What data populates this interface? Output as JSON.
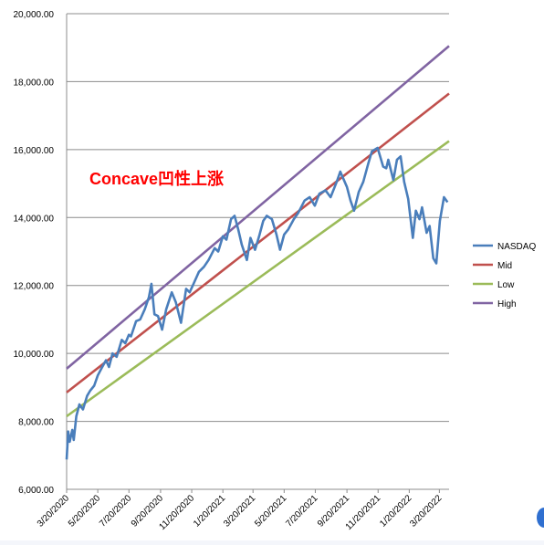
{
  "chart_data": {
    "type": "line",
    "annotation": "Concave凹性上涨",
    "ylim": [
      6000,
      20000
    ],
    "yticks": [
      6000,
      8000,
      10000,
      12000,
      14000,
      16000,
      18000,
      20000
    ],
    "ytick_labels": [
      "6,000.00",
      "8,000.00",
      "10,000.00",
      "12,000.00",
      "14,000.00",
      "16,000.00",
      "18,000.00",
      "20,000.00"
    ],
    "xlim": [
      "2020-03-20",
      "2022-04-08"
    ],
    "xticks": [
      "2020-03-20",
      "2020-05-20",
      "2020-07-20",
      "2020-09-20",
      "2020-11-20",
      "2021-01-20",
      "2021-03-20",
      "2021-05-20",
      "2021-07-20",
      "2021-09-20",
      "2021-11-20",
      "2022-01-20",
      "2022-03-20"
    ],
    "xtick_labels": [
      "3/20/2020",
      "5/20/2020",
      "7/20/2020",
      "9/20/2020",
      "11/20/2020",
      "1/20/2021",
      "3/20/2021",
      "5/20/2021",
      "7/20/2021",
      "9/20/2021",
      "11/20/2021",
      "1/20/2022",
      "3/20/2022"
    ],
    "grid": "horizontal",
    "legend_position": "right",
    "series": [
      {
        "name": "NASDAQ",
        "color": "#4a7ebb",
        "x": [
          "2020-03-20",
          "2020-03-23",
          "2020-03-26",
          "2020-03-31",
          "2020-04-03",
          "2020-04-08",
          "2020-04-14",
          "2020-04-21",
          "2020-04-29",
          "2020-05-05",
          "2020-05-13",
          "2020-05-20",
          "2020-05-27",
          "2020-06-05",
          "2020-06-11",
          "2020-06-18",
          "2020-06-26",
          "2020-07-06",
          "2020-07-13",
          "2020-07-20",
          "2020-07-24",
          "2020-08-03",
          "2020-08-11",
          "2020-08-20",
          "2020-08-28",
          "2020-09-02",
          "2020-09-08",
          "2020-09-15",
          "2020-09-23",
          "2020-10-01",
          "2020-10-12",
          "2020-10-20",
          "2020-10-30",
          "2020-11-09",
          "2020-11-16",
          "2020-11-25",
          "2020-12-04",
          "2020-12-14",
          "2020-12-23",
          "2021-01-04",
          "2021-01-11",
          "2021-01-20",
          "2021-01-27",
          "2021-02-05",
          "2021-02-12",
          "2021-02-19",
          "2021-02-26",
          "2021-03-08",
          "2021-03-15",
          "2021-03-24",
          "2021-04-01",
          "2021-04-09",
          "2021-04-16",
          "2021-04-26",
          "2021-05-05",
          "2021-05-12",
          "2021-05-20",
          "2021-05-28",
          "2021-06-08",
          "2021-06-17",
          "2021-06-29",
          "2021-07-09",
          "2021-07-19",
          "2021-07-28",
          "2021-08-09",
          "2021-08-19",
          "2021-08-31",
          "2021-09-07",
          "2021-09-20",
          "2021-09-27",
          "2021-10-04",
          "2021-10-13",
          "2021-10-22",
          "2021-11-01",
          "2021-11-08",
          "2021-11-19",
          "2021-11-30",
          "2021-12-06",
          "2021-12-10",
          "2021-12-20",
          "2021-12-27",
          "2022-01-03",
          "2022-01-10",
          "2022-01-18",
          "2022-01-27",
          "2022-02-02",
          "2022-02-09",
          "2022-02-14",
          "2022-02-23",
          "2022-03-01",
          "2022-03-08",
          "2022-03-14",
          "2022-03-21",
          "2022-03-29",
          "2022-04-05"
        ],
        "values": [
          6880,
          7700,
          7400,
          7750,
          7450,
          8150,
          8500,
          8350,
          8750,
          8900,
          9050,
          9350,
          9550,
          9800,
          9600,
          10000,
          9900,
          10400,
          10300,
          10550,
          10500,
          10950,
          11000,
          11300,
          11650,
          12050,
          11150,
          11100,
          10700,
          11300,
          11800,
          11500,
          10900,
          11900,
          11800,
          12100,
          12400,
          12550,
          12750,
          13100,
          13000,
          13450,
          13350,
          13950,
          14050,
          13650,
          13200,
          12750,
          13400,
          13050,
          13450,
          13900,
          14050,
          13950,
          13500,
          13050,
          13500,
          13650,
          13950,
          14150,
          14500,
          14600,
          14350,
          14700,
          14800,
          14600,
          15050,
          15350,
          14900,
          14500,
          14200,
          14750,
          15050,
          15600,
          15950,
          16050,
          15500,
          15450,
          15700,
          15100,
          15700,
          15800,
          15050,
          14550,
          13400,
          14200,
          13950,
          14300,
          13550,
          13750,
          12800,
          12650,
          13900,
          14600,
          14450
        ]
      },
      {
        "name": "Mid",
        "color": "#c0504d",
        "x": [
          "2020-03-20",
          "2022-04-08"
        ],
        "values": [
          8850,
          17650
        ]
      },
      {
        "name": "Low",
        "color": "#9bbb59",
        "x": [
          "2020-03-20",
          "2022-04-08"
        ],
        "values": [
          8150,
          16250
        ]
      },
      {
        "name": "High",
        "color": "#8064a2",
        "x": [
          "2020-03-20",
          "2022-04-08"
        ],
        "values": [
          9550,
          19050
        ]
      }
    ]
  }
}
